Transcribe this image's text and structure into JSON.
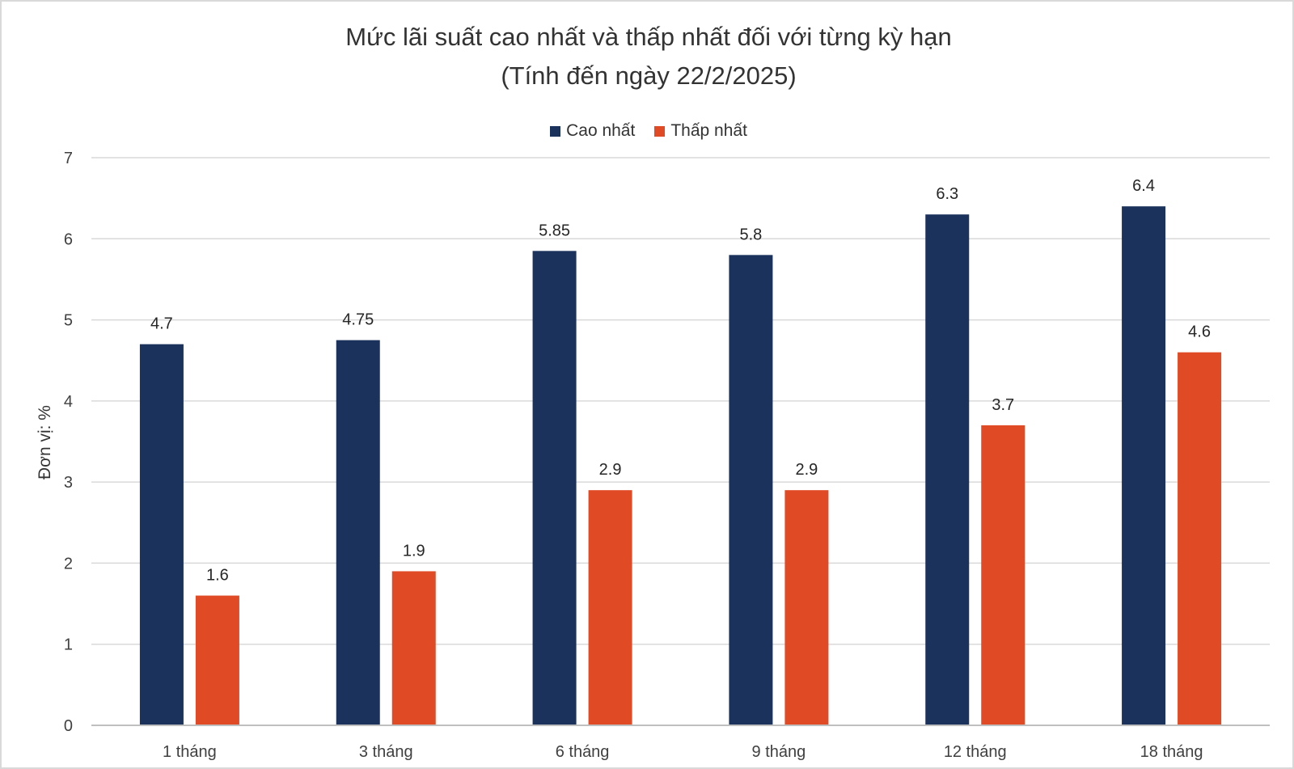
{
  "chart_data": {
    "type": "bar",
    "title": "Mức lãi suất cao nhất và thấp nhất đối với từng kỳ hạn",
    "subtitle": "(Tính đến ngày 22/2/2025)",
    "xlabel": "",
    "ylabel": "Đơn vị: %",
    "ylim": [
      0,
      7
    ],
    "yticks": [
      0,
      1,
      2,
      3,
      4,
      5,
      6,
      7
    ],
    "grid": true,
    "legend_position": "top-center",
    "categories": [
      "1 tháng",
      "3 tháng",
      "6 tháng",
      "9 tháng",
      "12 tháng",
      "18 tháng"
    ],
    "series": [
      {
        "name": "Cao nhất",
        "color": "#1b325d",
        "values": [
          4.7,
          4.75,
          5.85,
          5.8,
          6.3,
          6.4
        ],
        "labels": [
          "4.7",
          "4.75",
          "5.85",
          "5.8",
          "6.3",
          "6.4"
        ]
      },
      {
        "name": "Thấp nhất",
        "color": "#e04b26",
        "values": [
          1.6,
          1.9,
          2.9,
          2.9,
          3.7,
          4.6
        ],
        "labels": [
          "1.6",
          "1.9",
          "2.9",
          "2.9",
          "3.7",
          "4.6"
        ]
      }
    ]
  }
}
